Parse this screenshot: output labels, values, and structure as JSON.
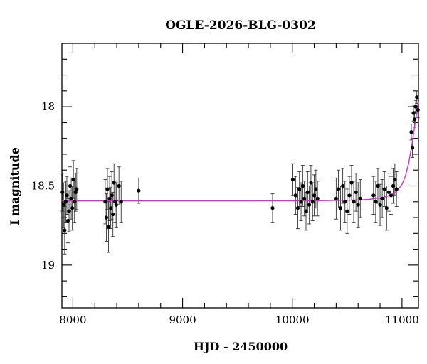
{
  "chart_data": {
    "type": "scatter",
    "title": "OGLE-2026-BLG-0302",
    "xlabel": "HJD - 2450000",
    "ylabel": "I magnitude",
    "xlim": [
      7900,
      11150
    ],
    "ylim": [
      19.27,
      17.6
    ],
    "y_inverted": true,
    "x_ticks": [
      8000,
      9000,
      10000,
      11000
    ],
    "y_ticks": [
      18,
      18.5,
      19
    ],
    "grid": false,
    "colors": {
      "points": "#000000",
      "model": "#cc33cc",
      "axes": "#000000"
    },
    "model_curve": {
      "name": "",
      "x": [
        7900,
        8500,
        9000,
        9500,
        10000,
        10300,
        10500,
        10600,
        10700,
        10800,
        10850,
        10900,
        10950,
        11000,
        11030,
        11060,
        11090,
        11120,
        11150
      ],
      "y": [
        18.595,
        18.595,
        18.595,
        18.595,
        18.594,
        18.593,
        18.591,
        18.589,
        18.585,
        18.577,
        18.569,
        18.556,
        18.535,
        18.49,
        18.44,
        18.36,
        18.24,
        18.1,
        17.97
      ]
    },
    "series": [
      {
        "name": "",
        "x": [
          7905,
          7915,
          7925,
          7935,
          7945,
          7955,
          7965,
          7975,
          7985,
          7995,
          8005,
          8015,
          8025,
          8035,
          8295,
          8305,
          8315,
          8325,
          8335,
          8345,
          8355,
          8365,
          8375,
          8385,
          8395,
          8420,
          8440,
          8600,
          9820,
          10005,
          10030,
          10050,
          10065,
          10080,
          10095,
          10110,
          10125,
          10140,
          10155,
          10170,
          10185,
          10200,
          10215,
          10230,
          10400,
          10420,
          10440,
          10460,
          10480,
          10500,
          10520,
          10540,
          10560,
          10580,
          10600,
          10620,
          10740,
          10760,
          10780,
          10800,
          10820,
          10840,
          10860,
          10880,
          10900,
          10920,
          10935,
          10950,
          11085,
          11095,
          11105,
          11115,
          11125,
          11135,
          11145
        ],
        "y": [
          18.54,
          18.62,
          18.78,
          18.6,
          18.56,
          18.72,
          18.66,
          18.5,
          18.58,
          18.64,
          18.46,
          18.6,
          18.54,
          18.52,
          18.6,
          18.7,
          18.52,
          18.76,
          18.58,
          18.64,
          18.56,
          18.68,
          18.48,
          18.6,
          18.62,
          18.5,
          18.6,
          18.53,
          18.64,
          18.46,
          18.56,
          18.64,
          18.52,
          18.6,
          18.5,
          18.58,
          18.66,
          18.54,
          18.62,
          18.48,
          18.6,
          18.56,
          18.52,
          18.58,
          18.58,
          18.52,
          18.64,
          18.5,
          18.6,
          18.66,
          18.56,
          18.48,
          18.6,
          18.54,
          18.62,
          18.58,
          18.56,
          18.6,
          18.5,
          18.62,
          18.58,
          18.52,
          18.64,
          18.54,
          18.56,
          18.5,
          18.46,
          18.52,
          18.16,
          18.26,
          18.04,
          18.08,
          18.0,
          17.94,
          18.02
        ],
        "y_err": [
          0.12,
          0.14,
          0.15,
          0.13,
          0.12,
          0.14,
          0.13,
          0.12,
          0.13,
          0.14,
          0.12,
          0.13,
          0.12,
          0.13,
          0.14,
          0.15,
          0.13,
          0.16,
          0.14,
          0.13,
          0.15,
          0.14,
          0.12,
          0.13,
          0.14,
          0.12,
          0.13,
          0.08,
          0.09,
          0.1,
          0.12,
          0.13,
          0.11,
          0.12,
          0.13,
          0.11,
          0.12,
          0.13,
          0.12,
          0.11,
          0.12,
          0.13,
          0.12,
          0.11,
          0.13,
          0.12,
          0.14,
          0.11,
          0.13,
          0.14,
          0.12,
          0.11,
          0.13,
          0.12,
          0.14,
          0.12,
          0.12,
          0.13,
          0.11,
          0.13,
          0.12,
          0.11,
          0.14,
          0.12,
          0.12,
          0.11,
          0.1,
          0.11,
          0.05,
          0.06,
          0.05,
          0.05,
          0.04,
          0.04,
          0.05
        ]
      }
    ]
  }
}
